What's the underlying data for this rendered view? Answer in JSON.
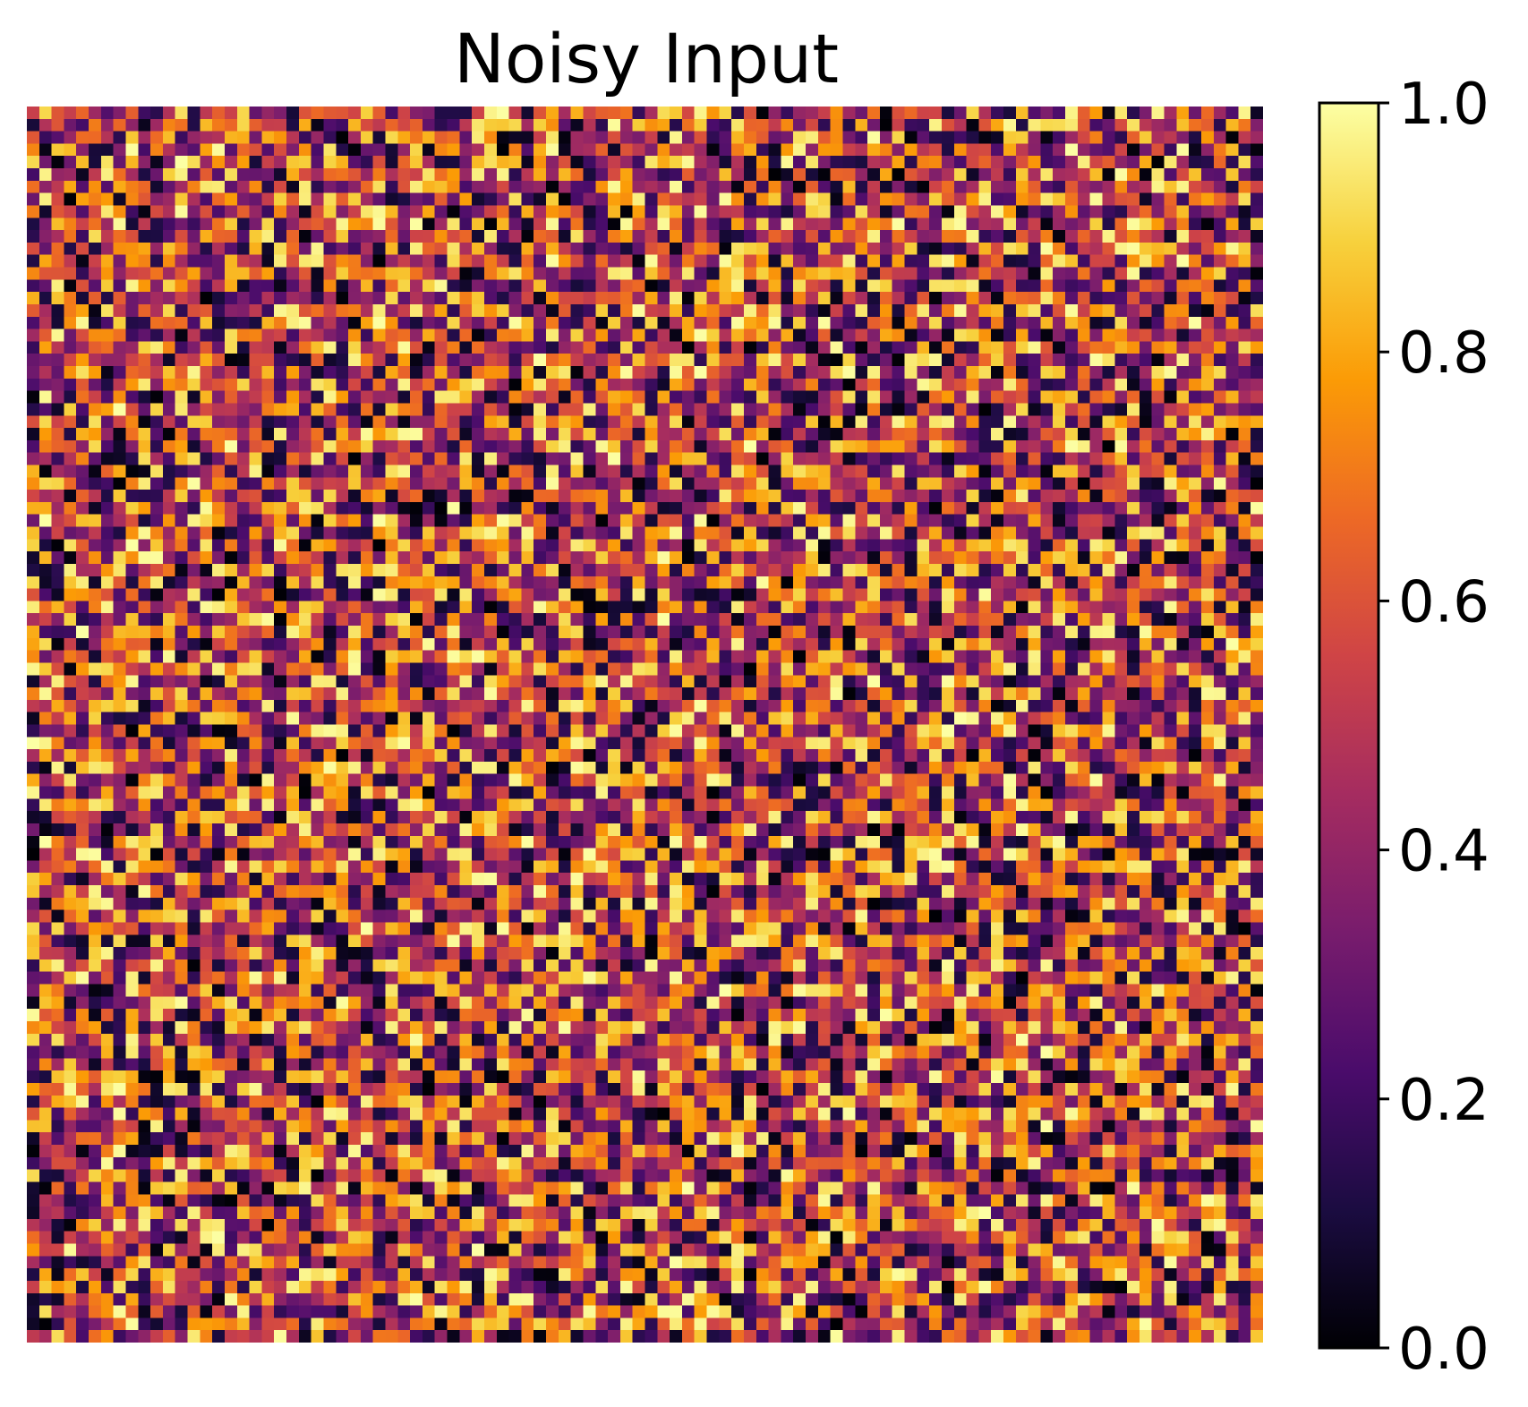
{
  "chart_data": {
    "type": "heatmap",
    "title": "Noisy Input",
    "grid_size": [
      100,
      100
    ],
    "value_range": [
      0.0,
      1.0
    ],
    "colormap": "inferno",
    "colormap_stops": [
      "#000004",
      "#1b0c41",
      "#4a0c6b",
      "#781c6d",
      "#a52c60",
      "#cf4446",
      "#ed6925",
      "#fb9b06",
      "#f7d13d",
      "#fcffa4"
    ],
    "axes_visible": false,
    "grid": false,
    "colorbar": {
      "position": "right",
      "range": [
        0.0,
        1.0
      ],
      "ticks": [
        0.0,
        0.2,
        0.4,
        0.6,
        0.8,
        1.0
      ],
      "tick_labels": [
        "0.0",
        "0.2",
        "0.4",
        "0.6",
        "0.8",
        "1.0"
      ]
    }
  }
}
